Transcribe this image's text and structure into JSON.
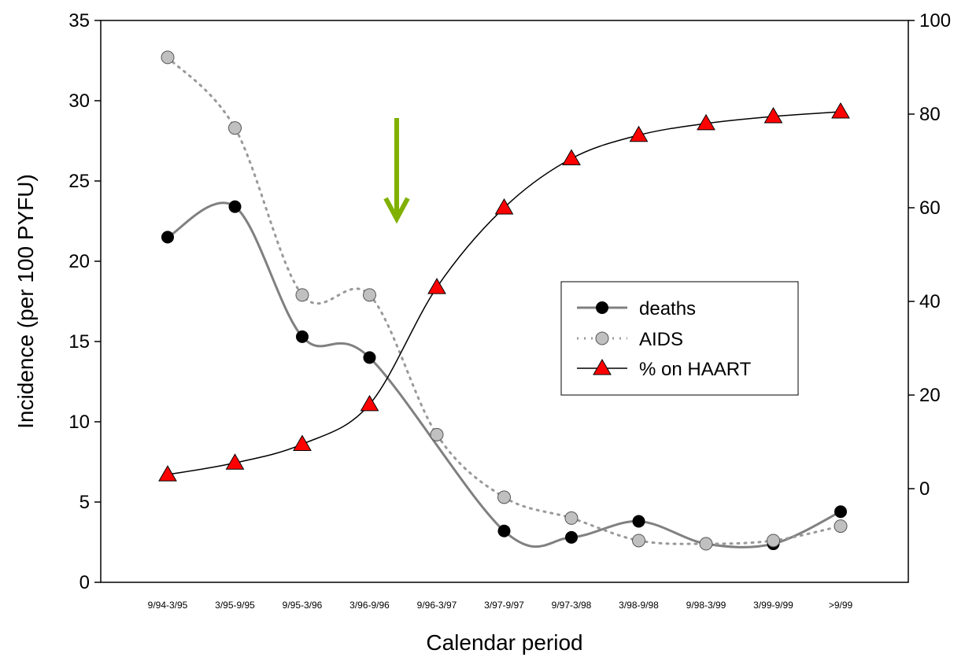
{
  "chart_data": {
    "type": "line",
    "categories": [
      "9/94-3/95",
      "3/95-9/95",
      "9/95-3/96",
      "3/96-9/96",
      "9/96-3/97",
      "3/97-9/97",
      "9/97-3/98",
      "3/98-9/98",
      "9/98-3/99",
      "3/99-9/99",
      ">9/99"
    ],
    "xlabel": "Calendar period",
    "ylabel": "Incidence (per 100 PYFU)",
    "ylim": [
      0,
      35
    ],
    "yticks": [
      0,
      5,
      10,
      15,
      20,
      25,
      30,
      35
    ],
    "y2lim": [
      -20,
      100
    ],
    "y2ticks": [
      0,
      20,
      40,
      60,
      80,
      100
    ],
    "series": [
      {
        "name": "deaths",
        "axis": "left",
        "marker": "circle-black",
        "line": "solid-grey",
        "color": "#000000",
        "values": [
          21.5,
          23.4,
          15.3,
          14.0,
          null,
          3.2,
          2.8,
          3.8,
          2.4,
          2.4,
          4.4
        ]
      },
      {
        "name": "AIDS",
        "axis": "left",
        "marker": "circle-grey",
        "line": "dotted-grey",
        "color": "#c0c0c0",
        "values": [
          32.7,
          28.3,
          17.9,
          17.9,
          9.2,
          5.3,
          4.0,
          2.6,
          2.4,
          2.6,
          3.5
        ]
      },
      {
        "name": "% on HAART",
        "axis": "right",
        "marker": "triangle-red",
        "line": "solid-black",
        "color": "#ff0000",
        "values": [
          3.0,
          5.5,
          9.5,
          18.0,
          43.0,
          60.0,
          70.5,
          75.5,
          78.0,
          79.5,
          80.5
        ]
      }
    ],
    "annotations": [
      {
        "type": "arrow",
        "color": "#80b000",
        "direction": "down",
        "between": [
          "3/96-9/96",
          "9/96-3/97"
        ]
      }
    ],
    "legend_position": "right-center",
    "grid": false
  }
}
